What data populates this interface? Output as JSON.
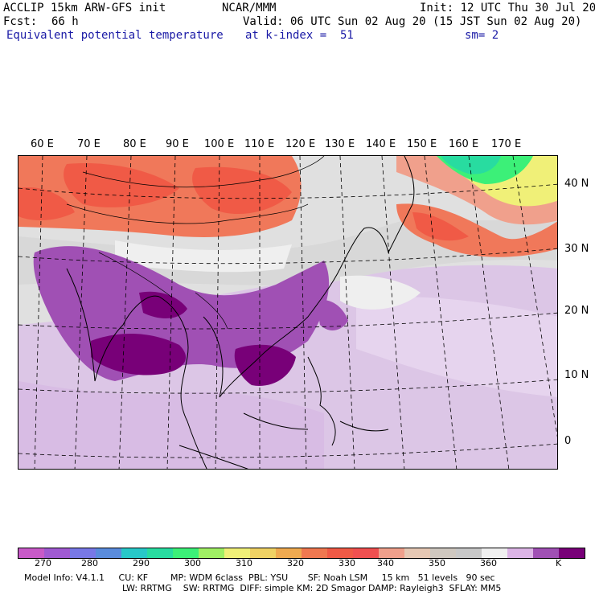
{
  "header": {
    "model_line": "ACCLIP 15km ARW-GFS init",
    "org": "NCAR/MMM",
    "init": "Init: 12 UTC Thu 30 Jul 20",
    "fcst_label": "Fcst:",
    "fcst_value": "66 h",
    "valid": "Valid: 06 UTC Sun 02 Aug 20 (15 JST Sun 02 Aug 20)",
    "field": "Equivalent potential temperature",
    "level": "at k-index =  51",
    "smooth": "sm= 2"
  },
  "map": {
    "lon_labels": [
      "60 E",
      "70 E",
      "80 E",
      "90 E",
      "100 E",
      "110 E",
      "120 E",
      "130 E",
      "140 E",
      "150 E",
      "160 E",
      "170 E"
    ],
    "lat_labels": [
      "40 N",
      "30 N",
      "20 N",
      "10 N",
      "0"
    ]
  },
  "colorbar": {
    "colors": [
      "#c85ac8",
      "#a05ad2",
      "#7878e6",
      "#5a8cdc",
      "#28c8c8",
      "#28dca0",
      "#3cf078",
      "#a0f064",
      "#f0f078",
      "#f0d264",
      "#f0aa50",
      "#f07850",
      "#f05a46",
      "#f05050",
      "#f0a08c",
      "#e6c8b4",
      "#cfc8c0",
      "#c8c8c8",
      "#f0f0f0",
      "#dcb4e6",
      "#a050b4",
      "#780078"
    ],
    "tick_labels": [
      "270",
      "280",
      "290",
      "300",
      "310",
      "320",
      "330",
      "340",
      "350",
      "360"
    ],
    "unit": "K"
  },
  "footer": {
    "line1": "Model Info: V4.1.1     CU: KF        MP: WDM 6class  PBL: YSU       SF: Noah LSM     15 km   51 levels   90 sec",
    "line2": "LW: RRTMG    SW: RRTMG  DIFF: simple KM: 2D Smagor DAMP: Rayleigh3  SFLAY: MM5"
  }
}
